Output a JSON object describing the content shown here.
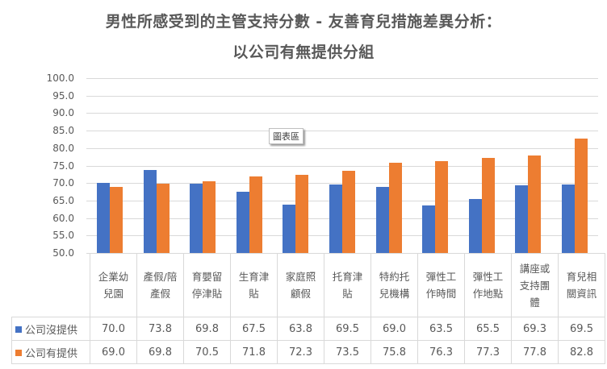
{
  "title": {
    "line1": "男性所感受到的主管支持分數 - 友善育兒措施差異分析：",
    "line2": "以公司有無提供分組"
  },
  "tooltip": "圖表區",
  "y_axis": {
    "ticks": [
      "100.0",
      "95.0",
      "90.0",
      "85.0",
      "80.0",
      "75.0",
      "70.0",
      "65.0",
      "60.0",
      "55.0",
      "50.0"
    ]
  },
  "categories_display": [
    [
      "企業幼",
      "兒園"
    ],
    [
      "產假/陪",
      "產假"
    ],
    [
      "育嬰留",
      "停津貼"
    ],
    [
      "生育津",
      "貼"
    ],
    [
      "家庭照",
      "顧假"
    ],
    [
      "托育津",
      "貼"
    ],
    [
      "特約托",
      "兒機構"
    ],
    [
      "彈性工",
      "作時間"
    ],
    [
      "彈性工",
      "作地點"
    ],
    [
      "講座或",
      "支持團",
      "體"
    ],
    [
      "育兒相",
      "關資訊"
    ]
  ],
  "legend": {
    "series0": "公司沒提供",
    "series1": "公司有提供"
  },
  "colors": {
    "series0": "#4472C4",
    "series1": "#ED7D31",
    "grid": "#D9D9D9",
    "text": "#595959"
  },
  "table": {
    "row0": [
      "70.0",
      "73.8",
      "69.8",
      "67.5",
      "63.8",
      "69.5",
      "69.0",
      "63.5",
      "65.5",
      "69.3",
      "69.5"
    ],
    "row1": [
      "69.0",
      "69.8",
      "70.5",
      "71.8",
      "72.3",
      "73.5",
      "75.8",
      "76.3",
      "77.3",
      "77.8",
      "82.8"
    ]
  },
  "chart_data": {
    "type": "bar",
    "title": "男性所感受到的主管支持分數 - 友善育兒措施差異分析：以公司有無提供分組",
    "categories": [
      "企業幼兒園",
      "產假/陪產假",
      "育嬰留停津貼",
      "生育津貼",
      "家庭照顧假",
      "托育津貼",
      "特約托兒機構",
      "彈性工作時間",
      "彈性工作地點",
      "講座或支持團體",
      "育兒相關資訊"
    ],
    "series": [
      {
        "name": "公司沒提供",
        "color": "#4472C4",
        "values": [
          70.0,
          73.8,
          69.8,
          67.5,
          63.8,
          69.5,
          69.0,
          63.5,
          65.5,
          69.3,
          69.5
        ]
      },
      {
        "name": "公司有提供",
        "color": "#ED7D31",
        "values": [
          69.0,
          69.8,
          70.5,
          71.8,
          72.3,
          73.5,
          75.8,
          76.3,
          77.3,
          77.8,
          82.8
        ]
      }
    ],
    "xlabel": "",
    "ylabel": "",
    "ylim": [
      50,
      100
    ],
    "ytick_step": 5,
    "grid": true,
    "legend_position": "data table (bottom)",
    "data_table": true
  }
}
